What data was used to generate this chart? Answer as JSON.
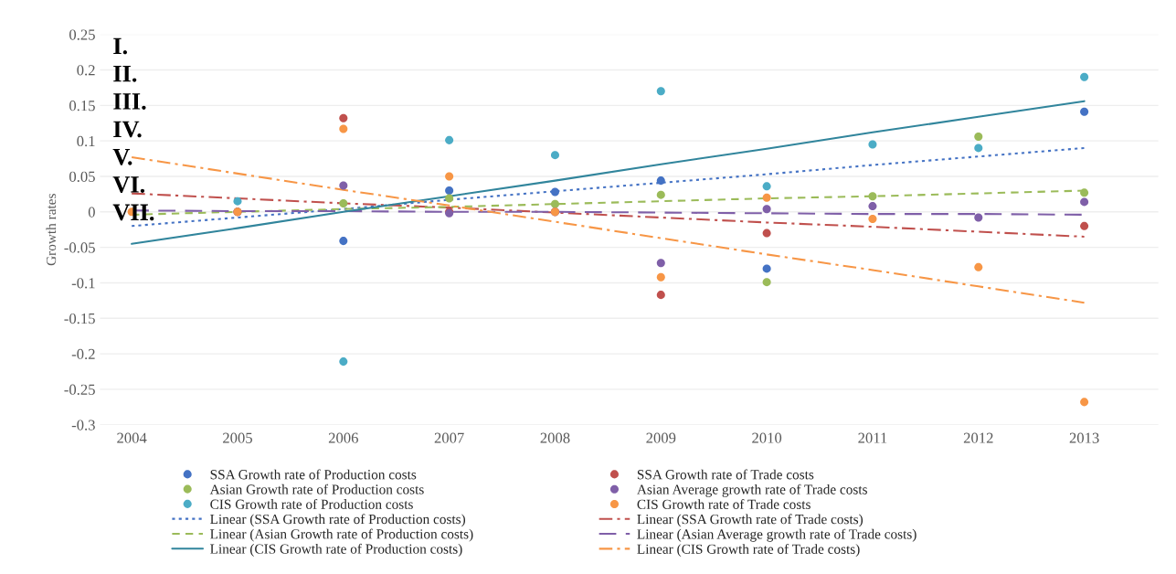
{
  "chart_data": {
    "type": "scatter",
    "ylabel": "Growth rates",
    "categories": [
      "2004",
      "2005",
      "2006",
      "2007",
      "2008",
      "2009",
      "2010",
      "2011",
      "2012",
      "2013"
    ],
    "ylim": [
      -0.3,
      0.25
    ],
    "yticks": [
      -0.3,
      -0.25,
      -0.2,
      -0.15,
      -0.1,
      -0.05,
      0,
      0.05,
      0.1,
      0.15,
      0.2,
      0.25
    ],
    "grid": "y",
    "legend": "bottom",
    "marker": "circle",
    "annotations": [
      "I.",
      "II.",
      "III.",
      "IV.",
      "V.",
      "VI.",
      "VII."
    ],
    "series": [
      {
        "name": "SSA Growth rate of Production costs",
        "color": "#4472c4",
        "values": [
          null,
          null,
          -0.041,
          0.03,
          0.028,
          0.044,
          -0.08,
          null,
          null,
          0.141
        ]
      },
      {
        "name": "SSA Growth rate of Trade costs",
        "color": "#c0504d",
        "values": [
          null,
          0,
          0.132,
          0,
          0,
          -0.117,
          -0.03,
          null,
          null,
          -0.02
        ]
      },
      {
        "name": "Asian Growth rate of Production costs",
        "color": "#9bbb59",
        "values": [
          null,
          null,
          0.012,
          0.019,
          0.011,
          0.024,
          -0.099,
          0.022,
          0.106,
          0.027
        ]
      },
      {
        "name": "Asian Average growth rate of Trade costs",
        "color": "#7f5fa8",
        "values": [
          null,
          0,
          0.037,
          -0.002,
          0,
          -0.072,
          0.004,
          0.008,
          -0.008,
          0.014
        ]
      },
      {
        "name": "CIS Growth rate of Production costs",
        "color": "#4bacc6",
        "values": [
          null,
          0.015,
          -0.211,
          0.101,
          0.08,
          0.17,
          0.036,
          0.095,
          0.09,
          0.19
        ]
      },
      {
        "name": "CIS Growth rate of Trade costs",
        "color": "#f79646",
        "values": [
          0,
          0,
          0.117,
          0.05,
          0,
          -0.092,
          0.02,
          -0.01,
          -0.078,
          -0.268
        ]
      },
      {
        "name": "Linear (SSA Growth rate of Production costs)",
        "type": "line",
        "color": "#4472c4",
        "line_style": "dotted",
        "marker": "none",
        "values": [
          -0.02,
          -0.008,
          0.004,
          0.017,
          0.029,
          0.041,
          0.053,
          0.066,
          0.078,
          0.09
        ]
      },
      {
        "name": "Linear (SSA Growth rate of Trade costs)",
        "type": "line",
        "color": "#c0504d",
        "line_style": "dashdot",
        "marker": "none",
        "values": [
          0.026,
          0.019,
          0.012,
          0.006,
          -0.001,
          -0.008,
          -0.015,
          -0.021,
          -0.028,
          -0.035
        ]
      },
      {
        "name": "Linear (Asian Growth rate of Production costs)",
        "type": "line",
        "color": "#9bbb59",
        "line_style": "dashed",
        "marker": "none",
        "values": [
          -0.004,
          0,
          0.004,
          0.007,
          0.011,
          0.015,
          0.019,
          0.022,
          0.026,
          0.03
        ]
      },
      {
        "name": "Linear (Asian Average growth rate of Trade costs)",
        "type": "line",
        "color": "#7f5fa8",
        "line_style": "longdash",
        "marker": "none",
        "values": [
          0.002,
          0.001,
          0.001,
          0,
          0,
          -0.001,
          -0.002,
          -0.003,
          -0.003,
          -0.004
        ]
      },
      {
        "name": "Linear (CIS Growth rate of Production costs)",
        "type": "line",
        "color": "#31859c",
        "line_style": "solid",
        "marker": "none",
        "values": [
          -0.045,
          -0.023,
          0,
          0.022,
          0.044,
          0.067,
          0.089,
          0.112,
          0.134,
          0.156
        ]
      },
      {
        "name": "Linear (CIS Growth rate of Trade costs)",
        "type": "line",
        "color": "#f79646",
        "line_style": "dashdot",
        "marker": "none",
        "values": [
          0.077,
          0.054,
          0.031,
          0.009,
          -0.014,
          -0.037,
          -0.06,
          -0.082,
          -0.105,
          -0.128
        ]
      }
    ]
  }
}
